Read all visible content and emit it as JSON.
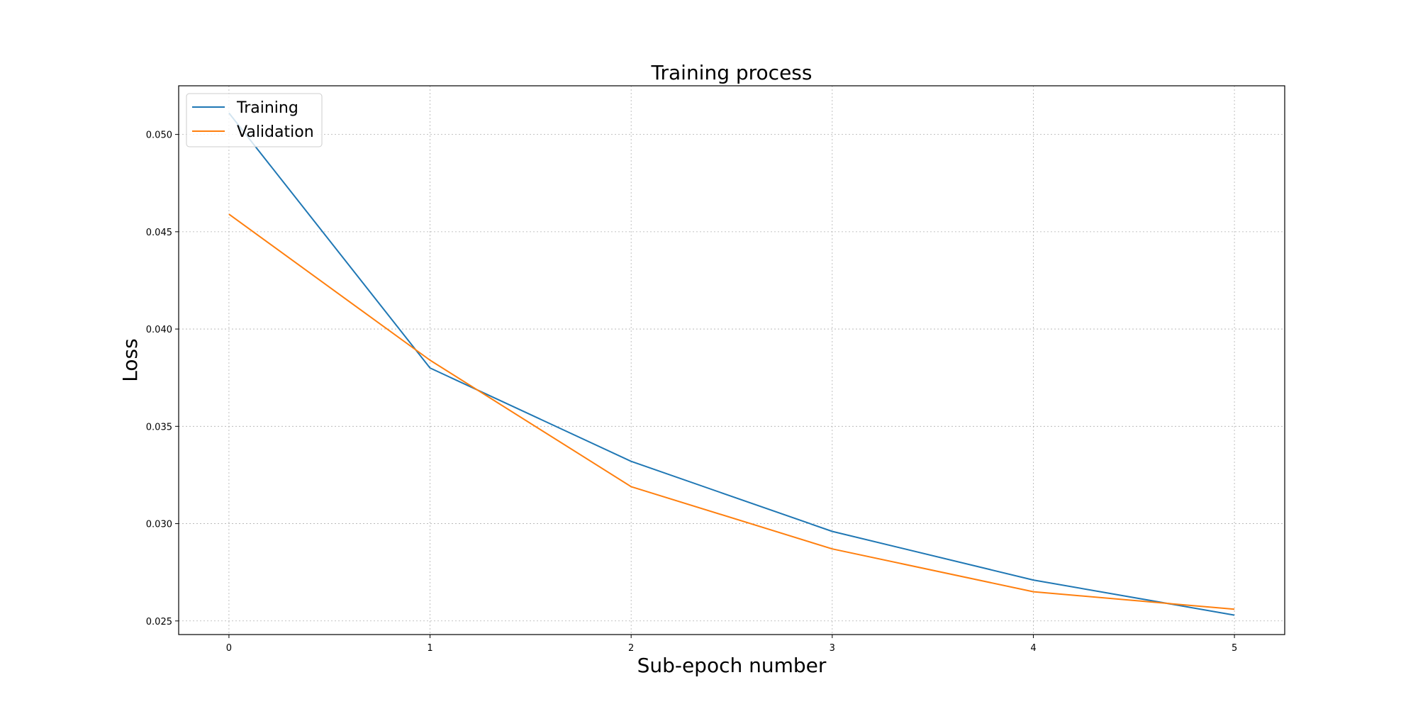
{
  "chart_data": {
    "type": "line",
    "title": "Training process",
    "xlabel": "Sub-epoch number",
    "ylabel": "Loss",
    "x": [
      0,
      1,
      2,
      3,
      4,
      5
    ],
    "xlim": [
      -0.25,
      5.25
    ],
    "ylim": [
      0.0243,
      0.0525
    ],
    "xticks": [
      "0",
      "1",
      "2",
      "3",
      "4",
      "5"
    ],
    "yticks": [
      "0.025",
      "0.030",
      "0.035",
      "0.040",
      "0.045",
      "0.050"
    ],
    "grid": true,
    "legend_position": "upper-left",
    "series": [
      {
        "name": "Training",
        "color": "#1f77b4",
        "values": [
          0.0511,
          0.038,
          0.0332,
          0.0296,
          0.0271,
          0.0253
        ]
      },
      {
        "name": "Validation",
        "color": "#ff7f0e",
        "values": [
          0.0459,
          0.0384,
          0.0319,
          0.0287,
          0.0265,
          0.0256
        ]
      }
    ]
  }
}
